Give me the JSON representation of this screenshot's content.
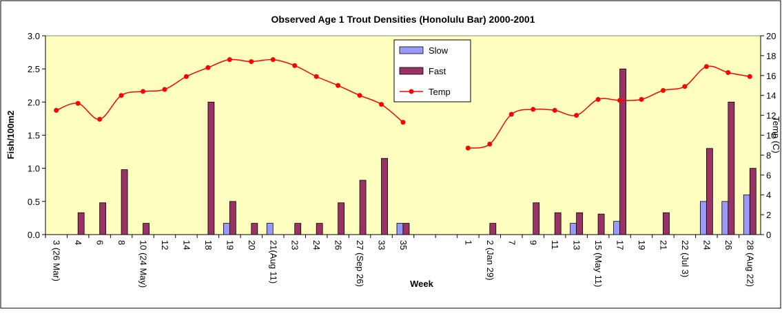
{
  "chart_data": {
    "type": "bar-line",
    "title": "Observed Age 1 Trout Densities (Honolulu Bar) 2000-2001",
    "x_label": "Week",
    "y_label": "Fish/100m2",
    "y2_label": "Temp (C)",
    "categories": [
      "3 (26 Mar)",
      "4",
      "6",
      "8",
      "10 (24 May)",
      "12",
      "14",
      "18",
      "19",
      "20",
      "21(Aug 11)",
      "23",
      "24",
      "26",
      "27 (Sep 26)",
      "33",
      "35",
      null,
      null,
      "1",
      "2 (Jan 29)",
      "7",
      "9",
      "11",
      "13",
      "15 (May 11)",
      "17",
      "19",
      "21",
      "22 (Jul 3)",
      "24",
      "26",
      "28 (Aug 22)"
    ],
    "series": [
      {
        "name": "Slow",
        "kind": "bar",
        "color": "#9999ff",
        "values": [
          0,
          0,
          0,
          0,
          0,
          0,
          0,
          0,
          0.17,
          0,
          0.17,
          0,
          0,
          0,
          0,
          0,
          0.17,
          null,
          null,
          0,
          0,
          0,
          0,
          0,
          0.17,
          0,
          0.2,
          0,
          0,
          0,
          0.5,
          0.5,
          0.6
        ]
      },
      {
        "name": "Fast",
        "kind": "bar",
        "color": "#993366",
        "values": [
          0,
          0.33,
          0.48,
          0.98,
          0.17,
          0,
          0,
          2.0,
          0.5,
          0.17,
          0,
          0.17,
          0.17,
          0.48,
          0.82,
          1.15,
          0.17,
          null,
          null,
          0,
          0.17,
          0,
          0.48,
          0.33,
          0.33,
          0.31,
          2.5,
          0,
          0.33,
          0,
          1.3,
          2.0,
          1.0
        ]
      },
      {
        "name": "Temp",
        "kind": "line",
        "axis": "y2",
        "color": "#ff0000",
        "values": [
          12.5,
          13.2,
          11.6,
          14.0,
          14.4,
          14.6,
          15.9,
          16.8,
          17.6,
          17.4,
          17.6,
          17.0,
          15.9,
          15.0,
          14.0,
          13.1,
          11.3,
          null,
          null,
          8.7,
          9.1,
          12.1,
          12.6,
          12.5,
          12.0,
          13.6,
          13.5,
          13.6,
          14.5,
          14.9,
          16.9,
          16.3,
          15.9
        ]
      }
    ],
    "ylim": [
      0,
      3
    ],
    "yticks": [
      {
        "value": 0,
        "label": "0.0"
      },
      {
        "value": 0.5,
        "label": "0.5"
      },
      {
        "value": 1,
        "label": "1.0"
      },
      {
        "value": 1.5,
        "label": "1.5"
      },
      {
        "value": 2,
        "label": "2.0"
      },
      {
        "value": 2.5,
        "label": "2.5"
      },
      {
        "value": 3,
        "label": "3.0"
      }
    ],
    "y2lim": [
      0,
      20
    ],
    "y2ticks": [
      0,
      2,
      4,
      6,
      8,
      10,
      12,
      14,
      16,
      18,
      20
    ],
    "legend": "top-center"
  }
}
